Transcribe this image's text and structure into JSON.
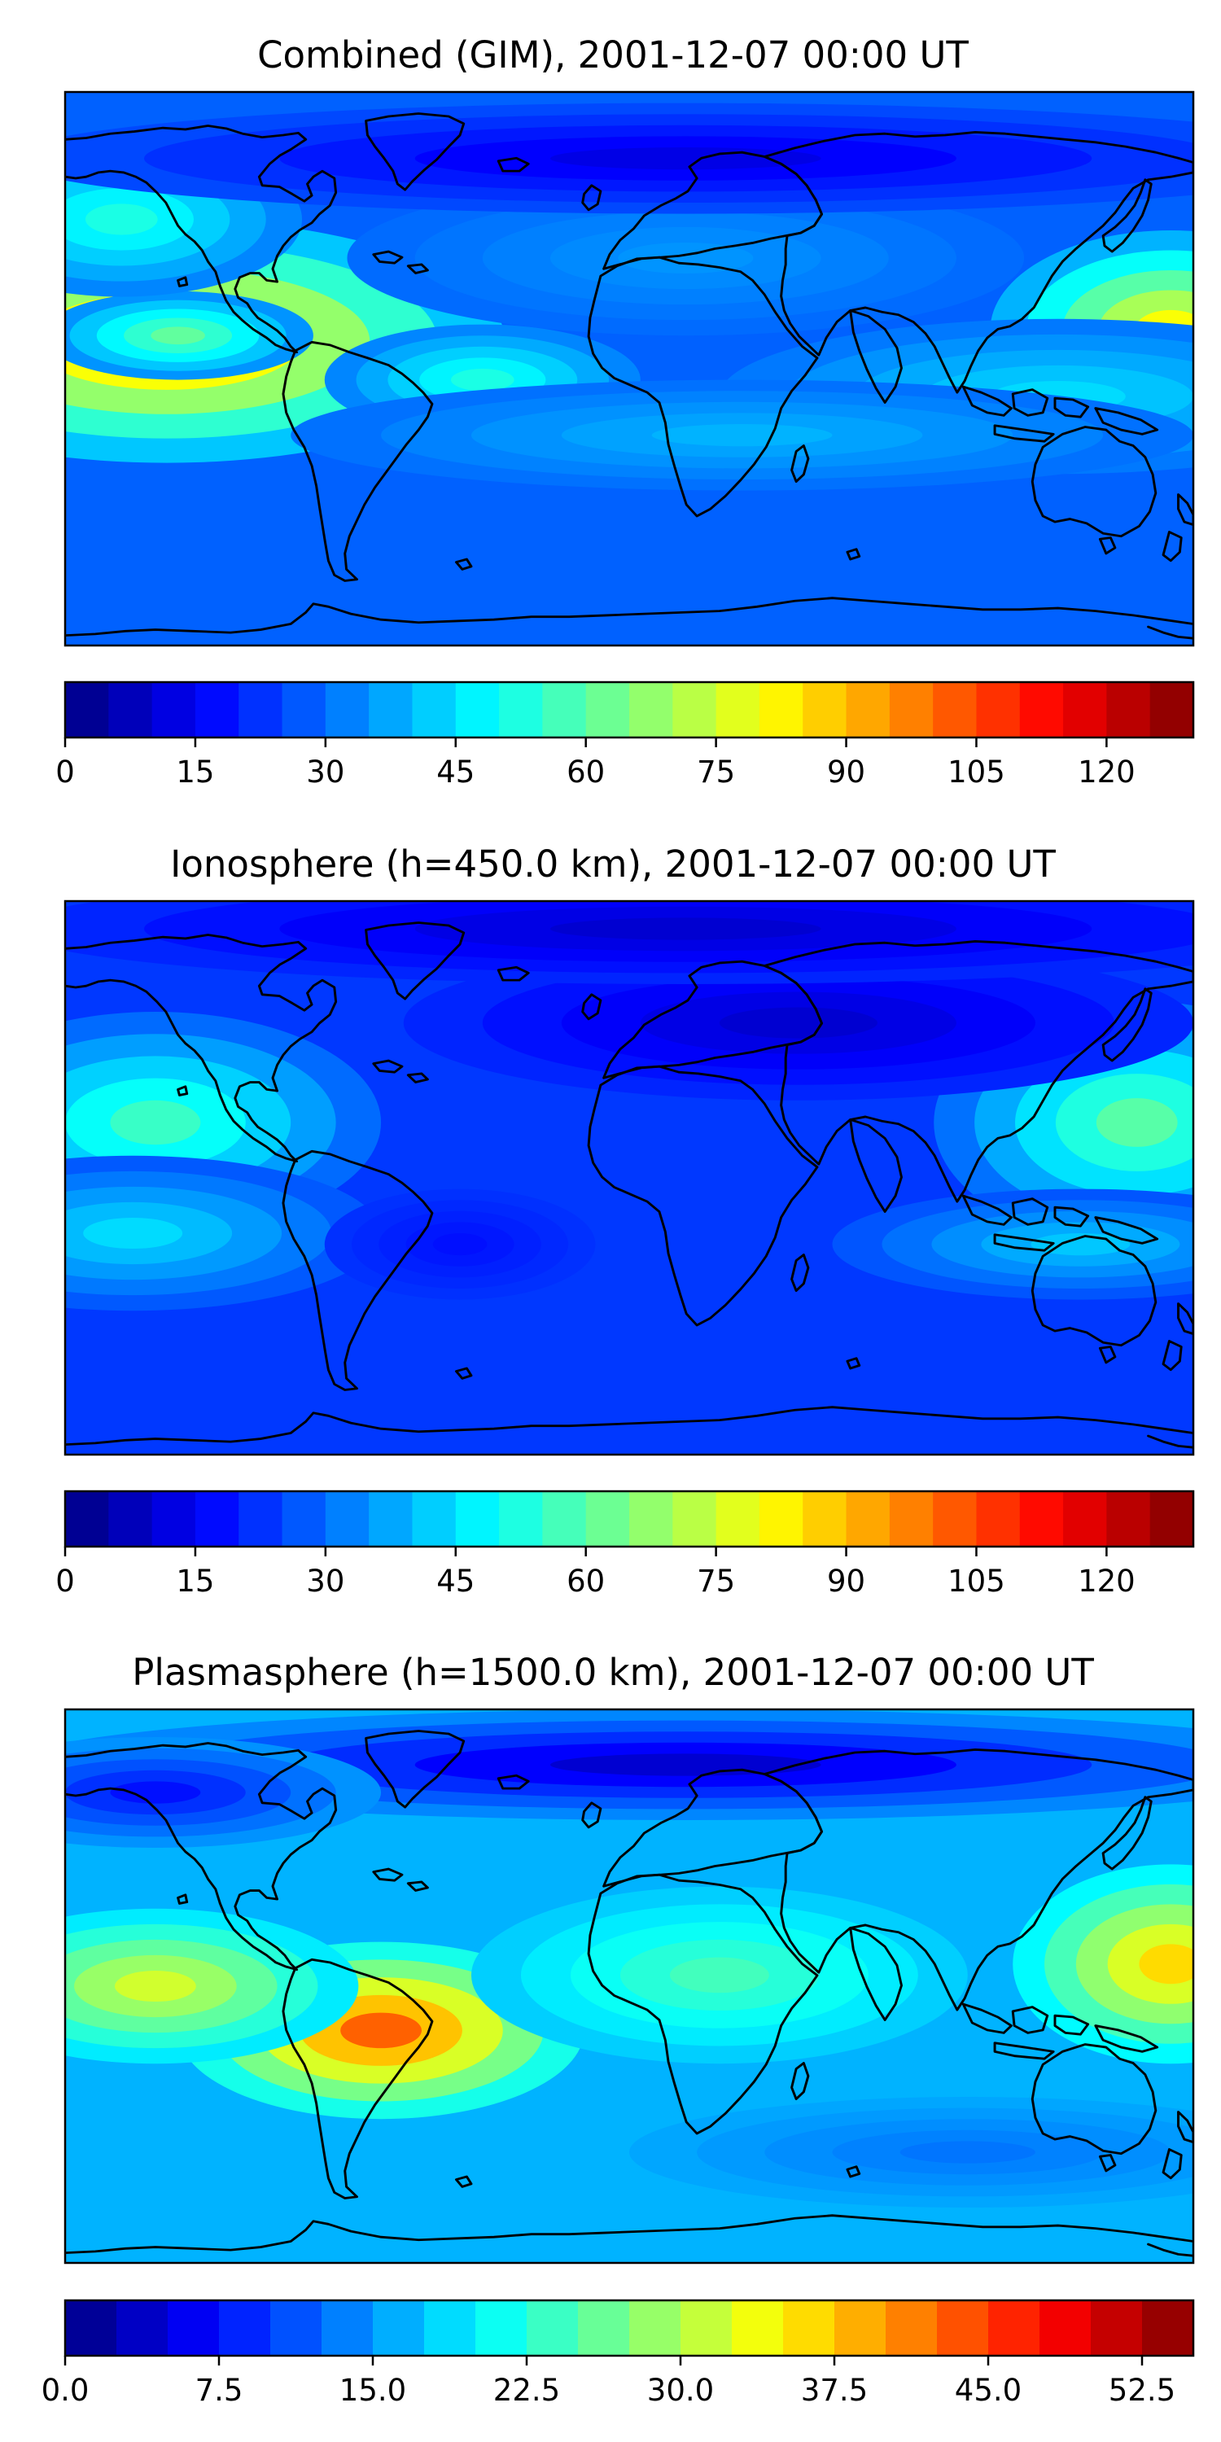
{
  "panels": [
    {
      "title": "Combined (GIM), 2001-12-07 00:00 UT",
      "colorbar": {
        "min": 0,
        "max": 130,
        "levels": 26,
        "ticks": [
          0,
          15,
          30,
          45,
          60,
          75,
          90,
          105,
          120
        ],
        "tick_labels": [
          "0",
          "15",
          "30",
          "45",
          "60",
          "75",
          "90",
          "105",
          "120"
        ]
      }
    },
    {
      "title": "Ionosphere  (h=450.0 km), 2001-12-07 00:00 UT",
      "colorbar": {
        "min": 0,
        "max": 130,
        "levels": 26,
        "ticks": [
          0,
          15,
          30,
          45,
          60,
          75,
          90,
          105,
          120
        ],
        "tick_labels": [
          "0",
          "15",
          "30",
          "45",
          "60",
          "75",
          "90",
          "105",
          "120"
        ]
      }
    },
    {
      "title": "Plasmasphere (h=1500.0 km), 2001-12-07 00:00 UT",
      "colorbar": {
        "min": 0,
        "max": 55,
        "levels": 22,
        "ticks": [
          0,
          7.5,
          15,
          22.5,
          30,
          37.5,
          45,
          52.5
        ],
        "tick_labels": [
          "0.0",
          "7.5",
          "15.0",
          "22.5",
          "30.0",
          "37.5",
          "45.0",
          "52.5"
        ]
      }
    }
  ],
  "colors": {
    "colormap": "jet",
    "coastline": "#000000"
  }
}
